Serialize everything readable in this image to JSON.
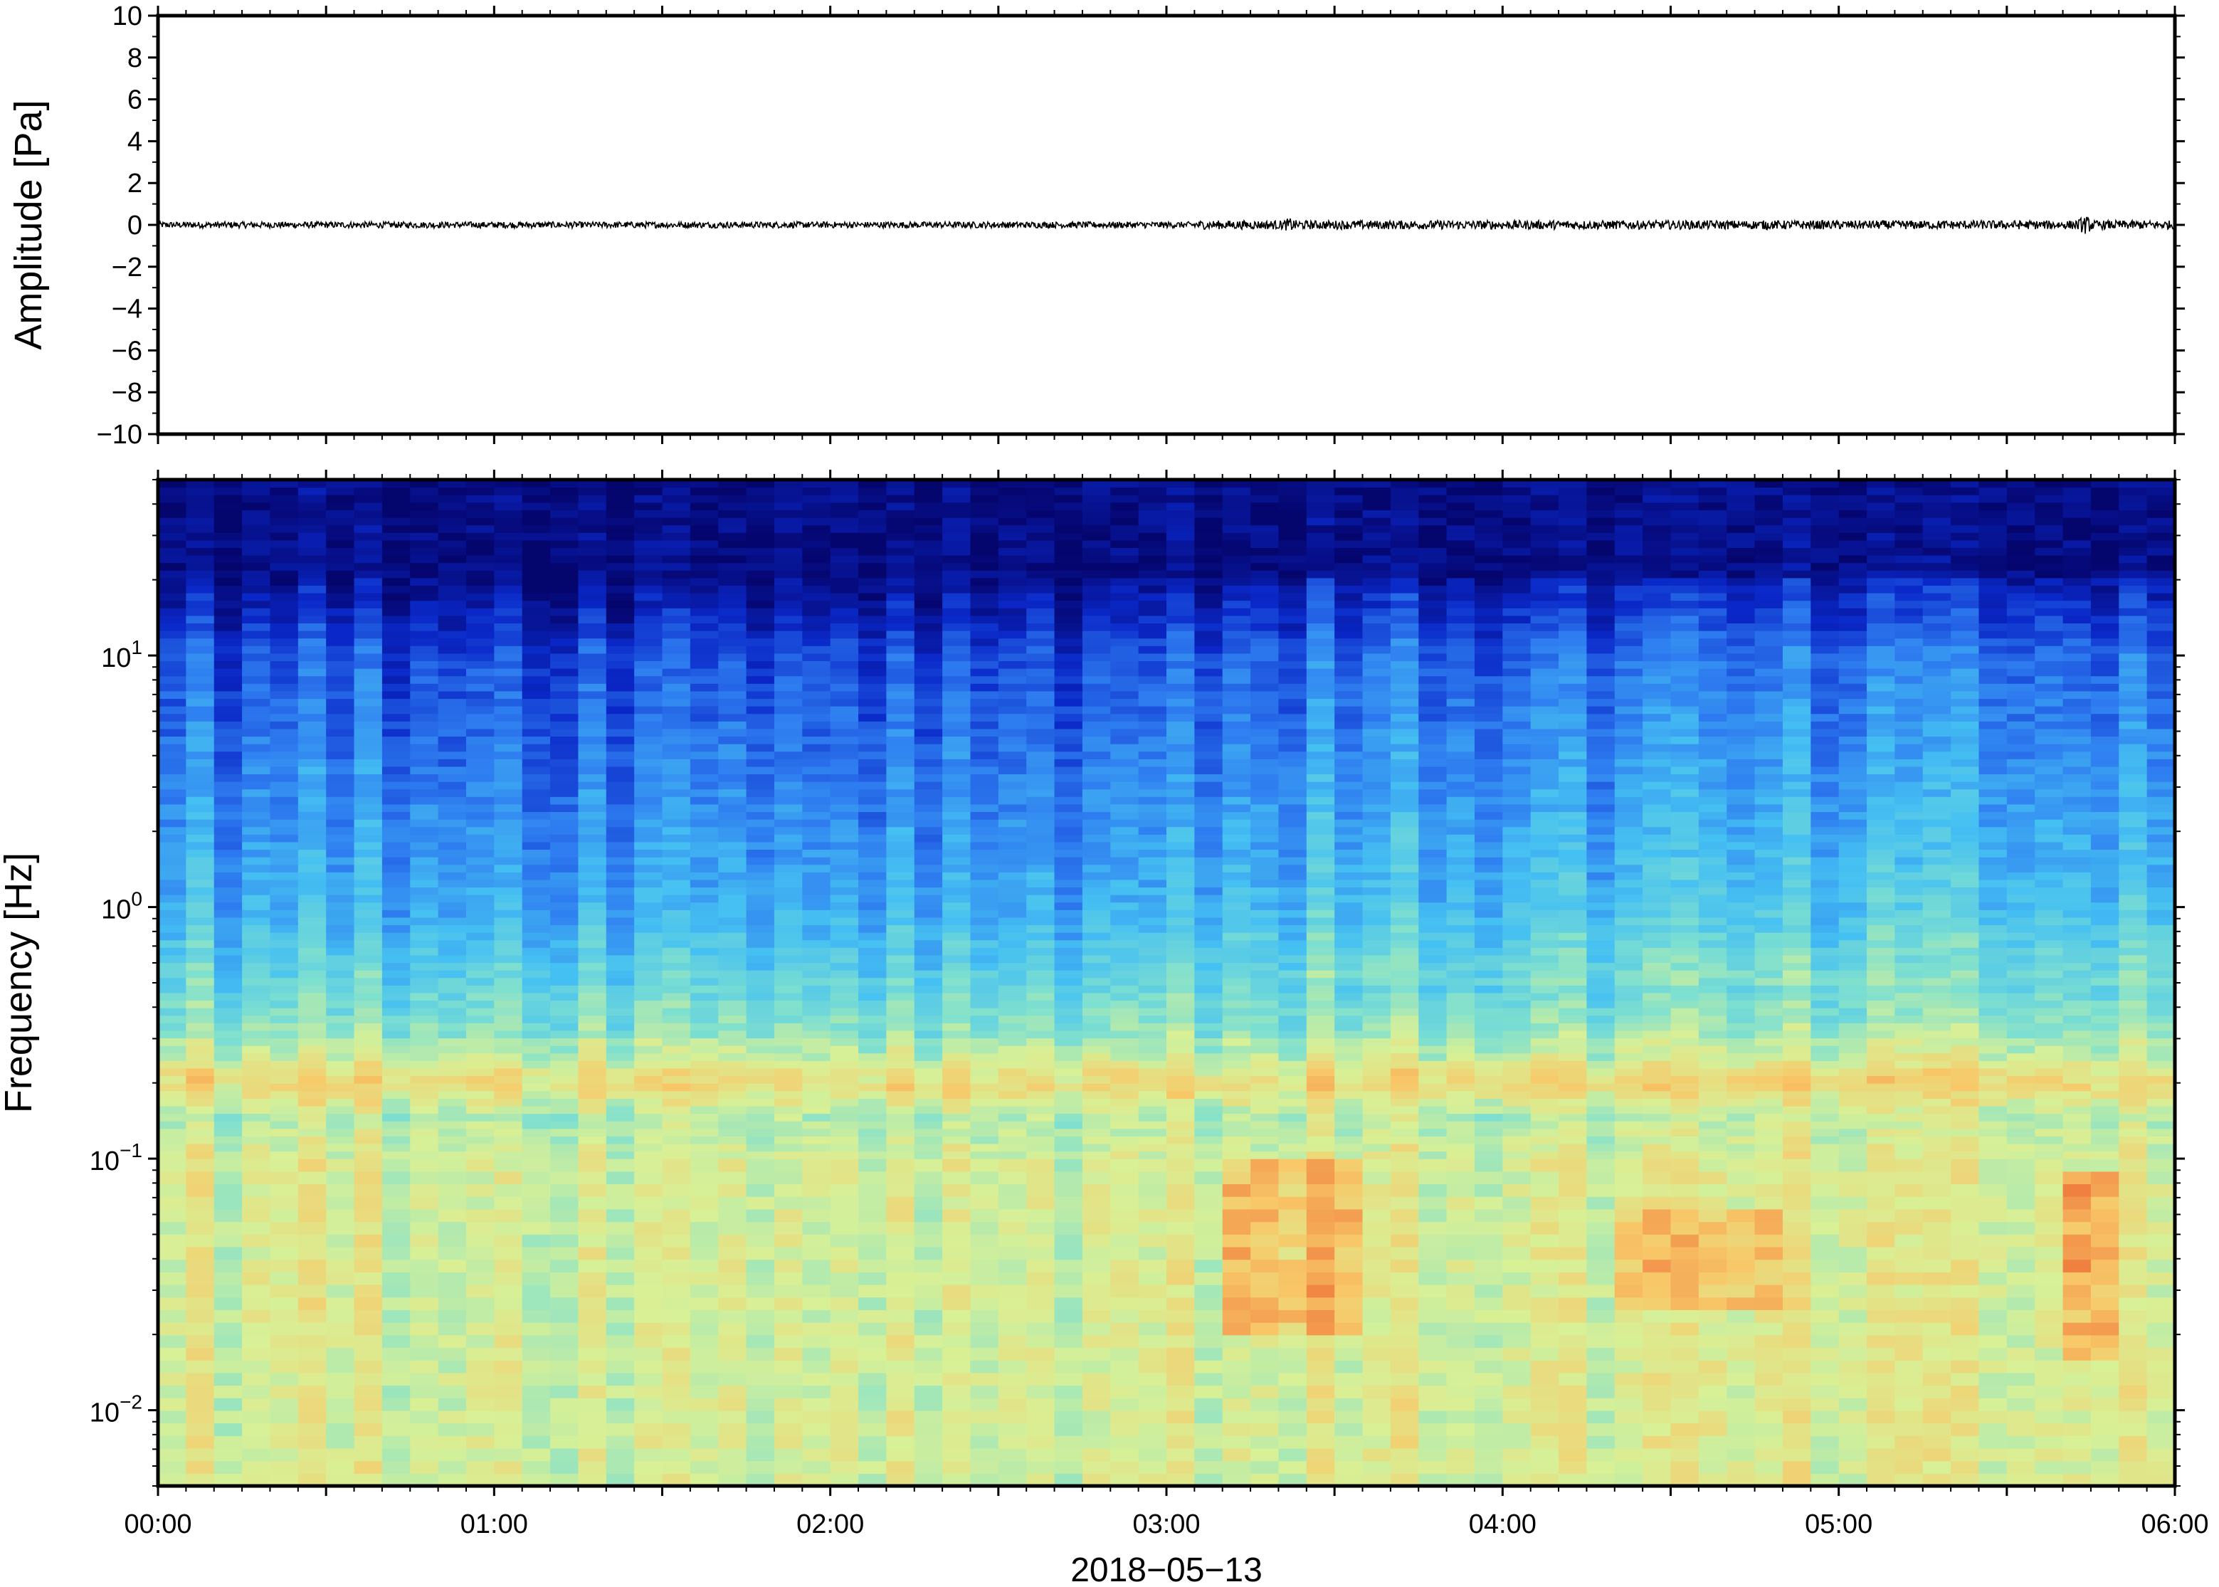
{
  "chart_data": [
    {
      "type": "line",
      "ylabel": "Amplitude [Pa]",
      "ylim": [
        -10,
        10
      ],
      "yticks": [
        "10",
        "8",
        "6",
        "4",
        "2",
        "0",
        "−2",
        "−4",
        "−6",
        "−8",
        "−10"
      ],
      "ytick_values": [
        10,
        8,
        6,
        4,
        2,
        0,
        -2,
        -4,
        -6,
        -8,
        -10
      ],
      "xlim": [
        "00:00",
        "06:00"
      ],
      "grid": false,
      "series": [
        {
          "trace": "pressure",
          "color": "#000000",
          "baseline": 0,
          "typical_peak_amplitude": 0.15,
          "bursts": [
            {
              "time": "03:22",
              "amplitude": 0.35
            },
            {
              "time": "04:47",
              "amplitude": 0.25
            },
            {
              "time": "05:44",
              "amplitude": 0.45
            }
          ]
        }
      ]
    },
    {
      "type": "heatmap",
      "ylabel": "Frequency [Hz]",
      "yscale": "log",
      "ylim": [
        0.005,
        50
      ],
      "ytick_values": [
        0.01,
        0.1,
        1,
        10
      ],
      "ytick_bases": [
        "10",
        "10",
        "10",
        "10"
      ],
      "ytick_exponents": [
        "−2",
        "−1",
        "0",
        "1"
      ],
      "xlim": [
        "00:00",
        "06:00"
      ],
      "xticks": [
        "00:00",
        "01:00",
        "02:00",
        "03:00",
        "04:00",
        "05:00",
        "06:00"
      ],
      "xlabel": "2018−05−13",
      "colormap": "jet-like (dark blue = low power, red = high power)",
      "colors": [
        "#05056e",
        "#0a28c8",
        "#2e7cf0",
        "#45c0f2",
        "#7fe0cf",
        "#d8f096",
        "#f8c868",
        "#f08040"
      ],
      "features": [
        {
          "label": "microbarom band",
          "freq_hz": 0.2,
          "level": "yellow-orange"
        },
        {
          "label": "enhanced low-frequency energy",
          "time_range": [
            "03:10",
            "03:35"
          ],
          "freq_range_hz": [
            0.02,
            0.1
          ],
          "level": "orange-red"
        },
        {
          "label": "enhanced low-frequency energy",
          "time_range": [
            "04:20",
            "04:50"
          ],
          "freq_range_hz": [
            0.025,
            0.06
          ],
          "level": "orange"
        },
        {
          "label": "enhanced low-frequency energy",
          "time_range": [
            "05:40",
            "05:50"
          ],
          "freq_range_hz": [
            0.015,
            0.09
          ],
          "level": "red"
        }
      ]
    }
  ]
}
